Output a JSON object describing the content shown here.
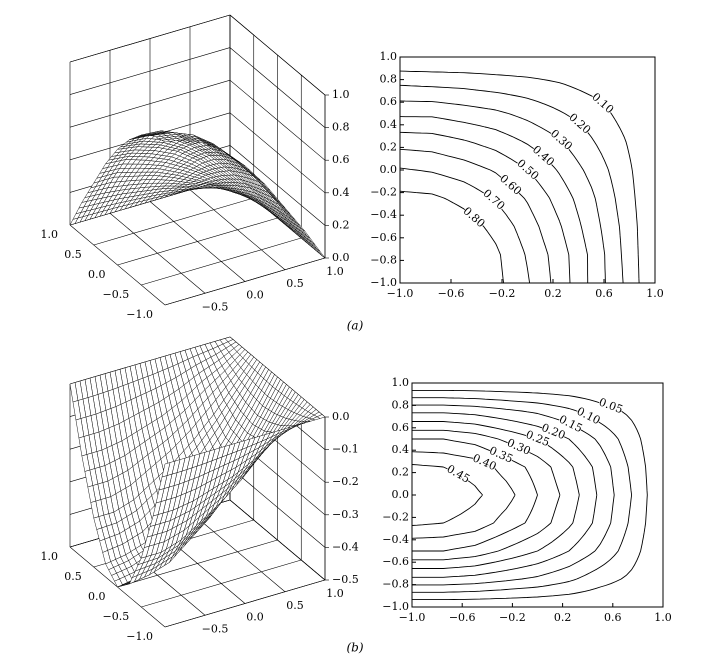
{
  "captions": [
    "(a)",
    "(b)"
  ],
  "chart_data": [
    {
      "type": "surface",
      "x": [
        -1,
        -0.75,
        -0.5,
        -0.25,
        0,
        0.25,
        0.5,
        0.75,
        1
      ],
      "y": [
        -1,
        -0.75,
        -0.5,
        -0.25,
        0,
        0.25,
        0.5,
        0.75,
        1
      ],
      "z": [
        [
          1,
          0.98,
          0.92,
          0.83,
          0.71,
          0.56,
          0.38,
          0.2,
          0
        ],
        [
          0.98,
          0.96,
          0.91,
          0.82,
          0.69,
          0.55,
          0.38,
          0.19,
          0
        ],
        [
          0.92,
          0.91,
          0.85,
          0.77,
          0.65,
          0.51,
          0.35,
          0.18,
          0
        ],
        [
          0.83,
          0.82,
          0.77,
          0.69,
          0.59,
          0.46,
          0.32,
          0.16,
          0
        ],
        [
          0.71,
          0.69,
          0.65,
          0.59,
          0.5,
          0.39,
          0.27,
          0.14,
          0
        ],
        [
          0.56,
          0.55,
          0.51,
          0.46,
          0.39,
          0.31,
          0.21,
          0.11,
          0
        ],
        [
          0.38,
          0.38,
          0.35,
          0.32,
          0.27,
          0.21,
          0.15,
          0.07,
          0
        ],
        [
          0.2,
          0.19,
          0.18,
          0.16,
          0.14,
          0.11,
          0.07,
          0.04,
          0
        ],
        [
          0,
          0,
          0,
          0,
          0,
          0,
          0,
          0,
          0
        ]
      ],
      "xlim": [
        -1,
        1
      ],
      "ylim": [
        -1,
        1
      ],
      "zlim": [
        0,
        1
      ],
      "xticks": [
        {
          "value": -0.5,
          "label": "−0.5"
        },
        {
          "value": 0,
          "label": "0.0"
        },
        {
          "value": 0.5,
          "label": "0.5"
        },
        {
          "value": 1,
          "label": "1.0"
        }
      ],
      "yticks": [
        {
          "value": -1,
          "label": "−1.0"
        },
        {
          "value": -0.5,
          "label": "−0.5"
        },
        {
          "value": 0,
          "label": "0.0"
        },
        {
          "value": 0.5,
          "label": "0.5"
        },
        {
          "value": 1,
          "label": "1.0"
        }
      ],
      "zticks": [
        {
          "value": 0,
          "label": "0.0"
        },
        {
          "value": 0.2,
          "label": "0.2"
        },
        {
          "value": 0.4,
          "label": "0.4"
        },
        {
          "value": 0.6,
          "label": "0.6"
        },
        {
          "value": 0.8,
          "label": "0.8"
        },
        {
          "value": 1,
          "label": "1.0"
        }
      ]
    },
    {
      "type": "contour",
      "x": [
        -1,
        -0.75,
        -0.5,
        -0.25,
        0,
        0.25,
        0.5,
        0.75,
        1
      ],
      "y": [
        -1,
        -0.75,
        -0.5,
        -0.25,
        0,
        0.25,
        0.5,
        0.75,
        1
      ],
      "z": [
        [
          1,
          0.98,
          0.92,
          0.83,
          0.71,
          0.56,
          0.38,
          0.2,
          0
        ],
        [
          0.98,
          0.96,
          0.91,
          0.82,
          0.69,
          0.55,
          0.38,
          0.19,
          0
        ],
        [
          0.92,
          0.91,
          0.85,
          0.77,
          0.65,
          0.51,
          0.35,
          0.18,
          0
        ],
        [
          0.83,
          0.82,
          0.77,
          0.69,
          0.59,
          0.46,
          0.32,
          0.16,
          0
        ],
        [
          0.71,
          0.69,
          0.65,
          0.59,
          0.5,
          0.39,
          0.27,
          0.14,
          0
        ],
        [
          0.56,
          0.55,
          0.51,
          0.46,
          0.39,
          0.31,
          0.21,
          0.11,
          0
        ],
        [
          0.38,
          0.38,
          0.35,
          0.32,
          0.27,
          0.21,
          0.15,
          0.07,
          0
        ],
        [
          0.2,
          0.19,
          0.18,
          0.16,
          0.14,
          0.11,
          0.07,
          0.04,
          0
        ],
        [
          0,
          0,
          0,
          0,
          0,
          0,
          0,
          0,
          0
        ]
      ],
      "levels": [
        0.1,
        0.2,
        0.3,
        0.4,
        0.5,
        0.6,
        0.7,
        0.8
      ],
      "level_labels": [
        "0.10",
        "0.20",
        "0.30",
        "0.40",
        "0.50",
        "0.60",
        "0.70",
        "0.80"
      ],
      "xlim": [
        -1,
        1
      ],
      "ylim": [
        -1,
        1
      ],
      "xticks": [
        {
          "value": -1,
          "label": "−1.0"
        },
        {
          "value": -0.6,
          "label": "−0.6"
        },
        {
          "value": -0.2,
          "label": "−0.2"
        },
        {
          "value": 0.2,
          "label": "0.2"
        },
        {
          "value": 0.6,
          "label": "0.6"
        },
        {
          "value": 1,
          "label": "1.0"
        }
      ],
      "yticks": [
        {
          "value": -1,
          "label": "−1.0"
        },
        {
          "value": -0.8,
          "label": "−0.8"
        },
        {
          "value": -0.6,
          "label": "−0.6"
        },
        {
          "value": -0.4,
          "label": "−0.4"
        },
        {
          "value": -0.2,
          "label": "−0.2"
        },
        {
          "value": 0,
          "label": "0.0"
        },
        {
          "value": 0.2,
          "label": "0.2"
        },
        {
          "value": 0.4,
          "label": "0.4"
        },
        {
          "value": 0.6,
          "label": "0.6"
        },
        {
          "value": 0.8,
          "label": "0.8"
        },
        {
          "value": 1,
          "label": "1.0"
        }
      ]
    },
    {
      "type": "surface",
      "x": [
        -1,
        -0.75,
        -0.5,
        -0.25,
        0,
        0.25,
        0.5,
        0.75,
        1
      ],
      "y": [
        -1,
        -0.75,
        -0.5,
        -0.25,
        0,
        0.25,
        0.5,
        0.75,
        1
      ],
      "z": [
        [
          0,
          0,
          0,
          0,
          0,
          0,
          0,
          0,
          0
        ],
        [
          -0.19,
          -0.19,
          -0.18,
          -0.16,
          -0.14,
          -0.11,
          -0.07,
          -0.04,
          0
        ],
        [
          -0.35,
          -0.35,
          -0.33,
          -0.29,
          -0.25,
          -0.2,
          -0.14,
          -0.07,
          0
        ],
        [
          -0.46,
          -0.45,
          -0.43,
          -0.38,
          -0.33,
          -0.26,
          -0.18,
          -0.09,
          0
        ],
        [
          -0.5,
          -0.49,
          -0.46,
          -0.42,
          -0.35,
          -0.28,
          -0.19,
          -0.1,
          0
        ],
        [
          -0.46,
          -0.45,
          -0.43,
          -0.38,
          -0.33,
          -0.26,
          -0.18,
          -0.09,
          0
        ],
        [
          -0.35,
          -0.35,
          -0.33,
          -0.29,
          -0.25,
          -0.2,
          -0.14,
          -0.07,
          0
        ],
        [
          -0.19,
          -0.19,
          -0.18,
          -0.16,
          -0.14,
          -0.11,
          -0.07,
          -0.04,
          0
        ],
        [
          0,
          0,
          0,
          0,
          0,
          0,
          0,
          0,
          0
        ]
      ],
      "xlim": [
        -1,
        1
      ],
      "ylim": [
        -1,
        1
      ],
      "zlim": [
        -0.5,
        0
      ],
      "xticks": [
        {
          "value": -0.5,
          "label": "−0.5"
        },
        {
          "value": 0,
          "label": "0.0"
        },
        {
          "value": 0.5,
          "label": "0.5"
        },
        {
          "value": 1,
          "label": "1.0"
        }
      ],
      "yticks": [
        {
          "value": -1,
          "label": "−1.0"
        },
        {
          "value": -0.5,
          "label": "−0.5"
        },
        {
          "value": 0,
          "label": "0.0"
        },
        {
          "value": 0.5,
          "label": "0.5"
        },
        {
          "value": 1,
          "label": "1.0"
        }
      ],
      "zticks": [
        {
          "value": 0,
          "label": "0.0"
        },
        {
          "value": -0.1,
          "label": "−0.1"
        },
        {
          "value": -0.2,
          "label": "−0.2"
        },
        {
          "value": -0.3,
          "label": "−0.3"
        },
        {
          "value": -0.4,
          "label": "−0.4"
        },
        {
          "value": -0.5,
          "label": "−0.5"
        }
      ]
    },
    {
      "type": "contour",
      "x": [
        -1,
        -0.75,
        -0.5,
        -0.25,
        0,
        0.25,
        0.5,
        0.75,
        1
      ],
      "y": [
        -1,
        -0.75,
        -0.5,
        -0.25,
        0,
        0.25,
        0.5,
        0.75,
        1
      ],
      "z": [
        [
          0,
          0,
          0,
          0,
          0,
          0,
          0,
          0,
          0
        ],
        [
          0.19,
          0.19,
          0.18,
          0.16,
          0.14,
          0.11,
          0.07,
          0.04,
          0
        ],
        [
          0.35,
          0.35,
          0.33,
          0.29,
          0.25,
          0.2,
          0.14,
          0.07,
          0
        ],
        [
          0.46,
          0.45,
          0.43,
          0.38,
          0.33,
          0.26,
          0.18,
          0.09,
          0
        ],
        [
          0.5,
          0.49,
          0.46,
          0.42,
          0.35,
          0.28,
          0.19,
          0.1,
          0
        ],
        [
          0.46,
          0.45,
          0.43,
          0.38,
          0.33,
          0.26,
          0.18,
          0.09,
          0
        ],
        [
          0.35,
          0.35,
          0.33,
          0.29,
          0.25,
          0.2,
          0.14,
          0.07,
          0
        ],
        [
          0.19,
          0.19,
          0.18,
          0.16,
          0.14,
          0.11,
          0.07,
          0.04,
          0
        ],
        [
          0,
          0,
          0,
          0,
          0,
          0,
          0,
          0,
          0
        ]
      ],
      "levels": [
        0.05,
        0.1,
        0.15,
        0.2,
        0.25,
        0.3,
        0.35,
        0.4,
        0.45
      ],
      "level_labels": [
        "0.05",
        "0.10",
        "0.15",
        "0.20",
        "0.25",
        "0.30",
        "0.35",
        "0.40",
        "0.45"
      ],
      "xlim": [
        -1,
        1
      ],
      "ylim": [
        -1,
        1
      ],
      "xticks": [
        {
          "value": -1,
          "label": "−1.0"
        },
        {
          "value": -0.6,
          "label": "−0.6"
        },
        {
          "value": -0.2,
          "label": "−0.2"
        },
        {
          "value": 0.2,
          "label": "0.2"
        },
        {
          "value": 0.6,
          "label": "0.6"
        },
        {
          "value": 1,
          "label": "1.0"
        }
      ],
      "yticks": [
        {
          "value": -1,
          "label": "−1.0"
        },
        {
          "value": -0.8,
          "label": "−0.8"
        },
        {
          "value": -0.6,
          "label": "−0.6"
        },
        {
          "value": -0.4,
          "label": "−0.4"
        },
        {
          "value": -0.2,
          "label": "−0.2"
        },
        {
          "value": 0,
          "label": "0.0"
        },
        {
          "value": 0.2,
          "label": "0.2"
        },
        {
          "value": 0.4,
          "label": "0.4"
        },
        {
          "value": 0.6,
          "label": "0.6"
        },
        {
          "value": 0.8,
          "label": "0.8"
        },
        {
          "value": 1,
          "label": "1.0"
        }
      ]
    }
  ]
}
